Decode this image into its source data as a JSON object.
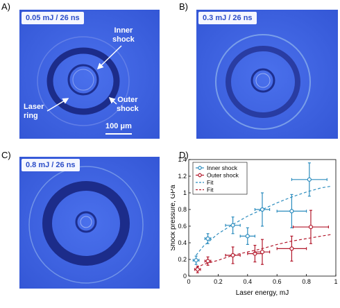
{
  "panels": {
    "a": {
      "letter": "A)",
      "badge": "0.05 mJ / 26 ns",
      "labels": {
        "inner_shock": "Inner\nshock",
        "outer_shock": "Outer\nshock",
        "laser_ring": "Laser\nring"
      },
      "scale_bar": "100 μm"
    },
    "b": {
      "letter": "B)",
      "badge": "0.3 mJ / 26 ns"
    },
    "c": {
      "letter": "C)",
      "badge": "0.8 mJ / 26 ns"
    },
    "d": {
      "letter": "D)"
    }
  },
  "colors": {
    "inner": "#2b8cbe",
    "outer": "#b2182b",
    "image_bg": "#3c62e0",
    "ring": "#1a2f8f"
  },
  "chart_data": {
    "type": "scatter",
    "xlabel": "Laser energy, mJ",
    "ylabel": "Shock pressure, GPa",
    "xlim": [
      0,
      1
    ],
    "ylim": [
      0,
      1.4
    ],
    "xticks": [
      "0",
      "0.2",
      "0.4",
      "0.6",
      "0.8",
      "1"
    ],
    "yticks": [
      "0",
      "0.2",
      "0.4",
      "0.6",
      "0.8",
      "1",
      "1.2",
      "1.4"
    ],
    "grid": false,
    "legend_position": "top-left",
    "legend": [
      "Inner shock",
      "Outer shock",
      "Fit",
      "Fit"
    ],
    "series": [
      {
        "name": "Inner shock",
        "kind": "points",
        "points": [
          {
            "x": 0.05,
            "y": 0.19,
            "xerr": 0.02,
            "yerr": 0.05
          },
          {
            "x": 0.13,
            "y": 0.45,
            "xerr": 0.02,
            "yerr": 0.06
          },
          {
            "x": 0.3,
            "y": 0.61,
            "xerr": 0.05,
            "yerr": 0.1
          },
          {
            "x": 0.4,
            "y": 0.48,
            "xerr": 0.05,
            "yerr": 0.1
          },
          {
            "x": 0.5,
            "y": 0.8,
            "xerr": 0.05,
            "yerr": 0.2
          },
          {
            "x": 0.7,
            "y": 0.78,
            "xerr": 0.1,
            "yerr": 0.2
          },
          {
            "x": 0.82,
            "y": 1.16,
            "xerr": 0.12,
            "yerr": 0.2
          }
        ]
      },
      {
        "name": "Outer shock",
        "kind": "points",
        "points": [
          {
            "x": 0.06,
            "y": 0.08,
            "xerr": 0.02,
            "yerr": 0.04
          },
          {
            "x": 0.13,
            "y": 0.18,
            "xerr": 0.02,
            "yerr": 0.05
          },
          {
            "x": 0.3,
            "y": 0.25,
            "xerr": 0.05,
            "yerr": 0.1
          },
          {
            "x": 0.45,
            "y": 0.27,
            "xerr": 0.05,
            "yerr": 0.1
          },
          {
            "x": 0.5,
            "y": 0.29,
            "xerr": 0.05,
            "yerr": 0.15
          },
          {
            "x": 0.7,
            "y": 0.33,
            "xerr": 0.1,
            "yerr": 0.15
          },
          {
            "x": 0.83,
            "y": 0.59,
            "xerr": 0.12,
            "yerr": 0.2
          }
        ]
      },
      {
        "name": "Fit",
        "kind": "fit_inner",
        "points": [
          {
            "x": 0.05,
            "y": 0.25
          },
          {
            "x": 0.1,
            "y": 0.36
          },
          {
            "x": 0.2,
            "y": 0.51
          },
          {
            "x": 0.3,
            "y": 0.62
          },
          {
            "x": 0.4,
            "y": 0.72
          },
          {
            "x": 0.5,
            "y": 0.8
          },
          {
            "x": 0.6,
            "y": 0.88
          },
          {
            "x": 0.7,
            "y": 0.95
          },
          {
            "x": 0.8,
            "y": 1.01
          },
          {
            "x": 0.9,
            "y": 1.06
          },
          {
            "x": 0.97,
            "y": 1.08
          }
        ]
      },
      {
        "name": "Fit",
        "kind": "fit_outer",
        "points": [
          {
            "x": 0.05,
            "y": 0.1
          },
          {
            "x": 0.1,
            "y": 0.14
          },
          {
            "x": 0.2,
            "y": 0.19
          },
          {
            "x": 0.3,
            "y": 0.25
          },
          {
            "x": 0.4,
            "y": 0.29
          },
          {
            "x": 0.5,
            "y": 0.33
          },
          {
            "x": 0.6,
            "y": 0.38
          },
          {
            "x": 0.7,
            "y": 0.42
          },
          {
            "x": 0.8,
            "y": 0.45
          },
          {
            "x": 0.9,
            "y": 0.48
          },
          {
            "x": 0.97,
            "y": 0.5
          }
        ]
      }
    ]
  }
}
